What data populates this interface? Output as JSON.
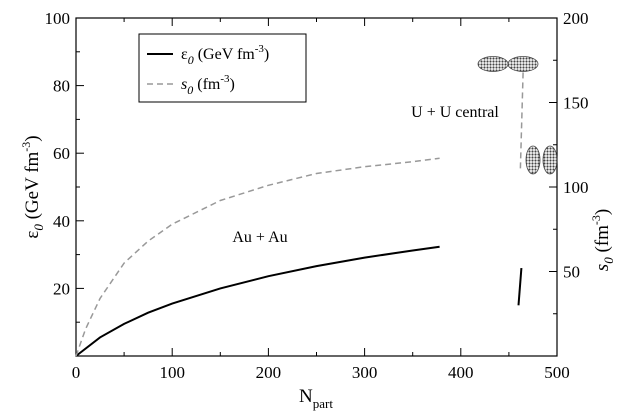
{
  "chart_data": {
    "type": "line",
    "xlabel_main": "N",
    "xlabel_sub": "part",
    "ylabel_left_main": "ε",
    "ylabel_left_sub": "0",
    "ylabel_left_unit": " (GeV fm",
    "ylabel_left_sup": "-3",
    "ylabel_left_close": ")",
    "ylabel_right_main": "s",
    "ylabel_right_sub": "0",
    "ylabel_right_unit": " (fm",
    "ylabel_right_sup": "-3",
    "ylabel_right_close": ")",
    "xlim": [
      0,
      500
    ],
    "ylim_left": [
      0,
      100
    ],
    "ylim_right": [
      0,
      200
    ],
    "x_ticks": [
      0,
      100,
      200,
      300,
      400,
      500
    ],
    "y_left_ticks": [
      20,
      40,
      60,
      80,
      100
    ],
    "y_right_ticks": [
      50,
      100,
      150,
      200
    ],
    "legend": {
      "placement": "top-left",
      "entries": [
        {
          "main": "ε",
          "sub": "0",
          "unit": " (GeV fm",
          "sup": "-3",
          "close": ")",
          "style": "solid",
          "color": "#000000"
        },
        {
          "main": "s",
          "sub": "0",
          "unit": " (fm",
          "sup": "-3",
          "close": ")",
          "style": "dashed",
          "color": "#999999"
        }
      ]
    },
    "annotations": {
      "au_au": "Au + Au",
      "u_u": "U + U central"
    },
    "series": [
      {
        "axis": "left",
        "style": "solid",
        "color": "#000000",
        "x": [
          0,
          25,
          50,
          75,
          100,
          150,
          200,
          250,
          300,
          350,
          378
        ],
        "y": [
          0,
          5.5,
          9.5,
          12.8,
          15.5,
          20.0,
          23.6,
          26.6,
          29.1,
          31.2,
          32.3
        ]
      },
      {
        "axis": "right",
        "style": "dashed",
        "color": "#999999",
        "x": [
          0,
          10,
          25,
          50,
          75,
          100,
          150,
          200,
          250,
          300,
          350,
          378
        ],
        "y": [
          0,
          16,
          34,
          55,
          68,
          78,
          92,
          101,
          108,
          112,
          115,
          117
        ]
      },
      {
        "axis": "left",
        "style": "solid",
        "color": "#000000",
        "x": [
          460,
          463
        ],
        "y": [
          15,
          26
        ]
      },
      {
        "axis": "right",
        "style": "dashed",
        "color": "#999999",
        "x": [
          462,
          465
        ],
        "y": [
          111,
          172
        ]
      }
    ],
    "grid": false
  }
}
